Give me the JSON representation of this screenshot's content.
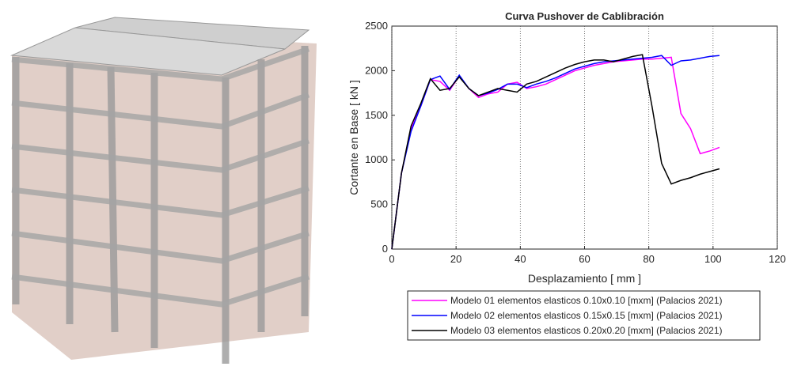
{
  "chart_data": {
    "type": "line",
    "title": "Curva Pushover de Cablibración",
    "x_label": "Desplazamiento [ mm ]",
    "y_label": "Cortante en Base [ kN ]",
    "x": [
      0,
      3,
      6,
      9,
      12,
      15,
      18,
      21,
      24,
      27,
      30,
      33,
      36,
      39,
      42,
      45,
      48,
      51,
      54,
      57,
      60,
      63,
      66,
      69,
      72,
      75,
      78,
      81,
      84,
      87,
      90,
      93,
      96,
      99,
      102
    ],
    "series": [
      {
        "name": "Modelo 01 elementos elasticos 0.10x0.10 [mxm] (Palacios 2021)",
        "color": "#ff00ff",
        "values": [
          0,
          850,
          1350,
          1600,
          1900,
          1880,
          1780,
          1940,
          1800,
          1700,
          1740,
          1760,
          1850,
          1870,
          1800,
          1820,
          1850,
          1900,
          1950,
          2000,
          2030,
          2060,
          2080,
          2100,
          2110,
          2120,
          2130,
          2130,
          2140,
          2150,
          1520,
          1350,
          1070,
          1100,
          1140
        ]
      },
      {
        "name": "Modelo 02 elementos elasticos 0.15x0.15 [mxm] (Palacios 2021)",
        "color": "#0000ff",
        "values": [
          0,
          850,
          1320,
          1600,
          1900,
          1940,
          1790,
          1950,
          1800,
          1720,
          1750,
          1790,
          1850,
          1850,
          1810,
          1850,
          1880,
          1920,
          1970,
          2020,
          2050,
          2080,
          2100,
          2110,
          2120,
          2130,
          2140,
          2150,
          2170,
          2060,
          2110,
          2120,
          2140,
          2160,
          2170
        ]
      },
      {
        "name": "Modelo 03 elementos elasticos 0.20x0.20 [mxm] (Palacios 2021)",
        "color": "#000000",
        "values": [
          0,
          850,
          1380,
          1630,
          1910,
          1780,
          1800,
          1930,
          1800,
          1720,
          1760,
          1800,
          1780,
          1760,
          1850,
          1880,
          1930,
          1980,
          2030,
          2070,
          2100,
          2120,
          2120,
          2100,
          2130,
          2160,
          2180,
          1600,
          960,
          730,
          770,
          800,
          840,
          870,
          900
        ]
      }
    ],
    "xlim": [
      0,
      120
    ],
    "xticks": [
      0,
      20,
      40,
      60,
      80,
      100,
      120
    ],
    "ylim": [
      0,
      2500
    ],
    "yticks": [
      0,
      500,
      1000,
      1500,
      2000,
      2500
    ],
    "grid": "x"
  }
}
